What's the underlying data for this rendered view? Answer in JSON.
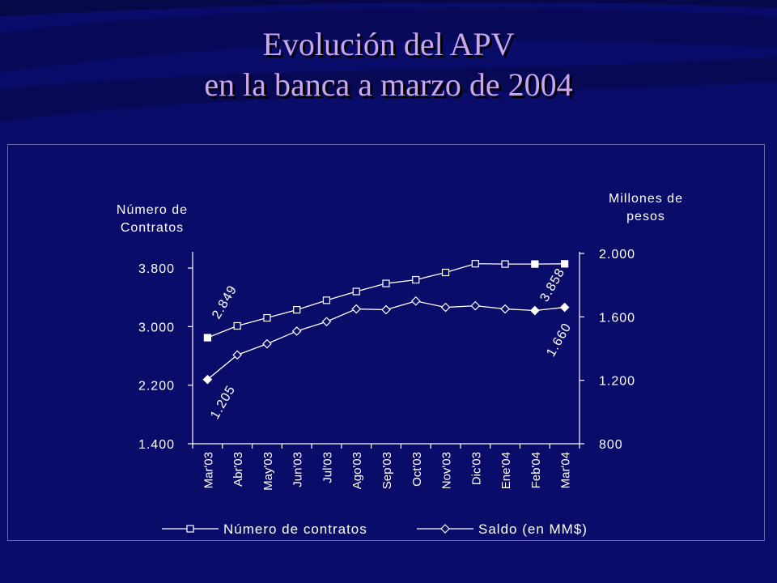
{
  "title": {
    "line1": "Evolución del APV",
    "line2": "en la banca a marzo de 2004"
  },
  "colors": {
    "background": "#0a0c6a",
    "title": "#c9a6ee",
    "axis": "#ffffff",
    "series": "#ffffff"
  },
  "chart_data": {
    "type": "line",
    "ylabel_left": [
      "Número de",
      "Contratos"
    ],
    "ylabel_right": [
      "Millones de",
      "pesos"
    ],
    "ylim_left": [
      1400,
      4000
    ],
    "yticks_left": [
      {
        "value": 1400,
        "label": "1.400"
      },
      {
        "value": 2200,
        "label": "2.200"
      },
      {
        "value": 3000,
        "label": "3.000"
      },
      {
        "value": 3800,
        "label": "3.800"
      }
    ],
    "ylim_right": [
      800,
      2000
    ],
    "yticks_right": [
      {
        "value": 800,
        "label": "800"
      },
      {
        "value": 1200,
        "label": "1.200"
      },
      {
        "value": 1600,
        "label": "1.600"
      },
      {
        "value": 2000,
        "label": "2.000"
      }
    ],
    "categories": [
      "Mar'03",
      "Abr'03",
      "May'03",
      "Jun'03",
      "Jul'03",
      "Ago'03",
      "Sep'03",
      "Oct'03",
      "Nov'03",
      "Dic'03",
      "Ene'04",
      "Feb'04",
      "Mar'04"
    ],
    "series": [
      {
        "name": "Número de contratos",
        "axis": "left",
        "marker": "square",
        "values": [
          2849,
          3010,
          3120,
          3230,
          3360,
          3480,
          3590,
          3640,
          3740,
          3860,
          3855,
          3855,
          3858
        ]
      },
      {
        "name": "Saldo (en MM$)",
        "axis": "right",
        "marker": "diamond",
        "values": [
          1205,
          1360,
          1430,
          1510,
          1570,
          1650,
          1645,
          1700,
          1660,
          1670,
          1650,
          1640,
          1660
        ]
      }
    ],
    "data_labels": [
      {
        "series": 0,
        "index": 0,
        "text": "2.849"
      },
      {
        "series": 0,
        "index": 12,
        "text": "3.858"
      },
      {
        "series": 1,
        "index": 0,
        "text": "1.205"
      },
      {
        "series": 1,
        "index": 12,
        "text": "1.660"
      }
    ],
    "legend_position": "bottom",
    "grid": false
  }
}
